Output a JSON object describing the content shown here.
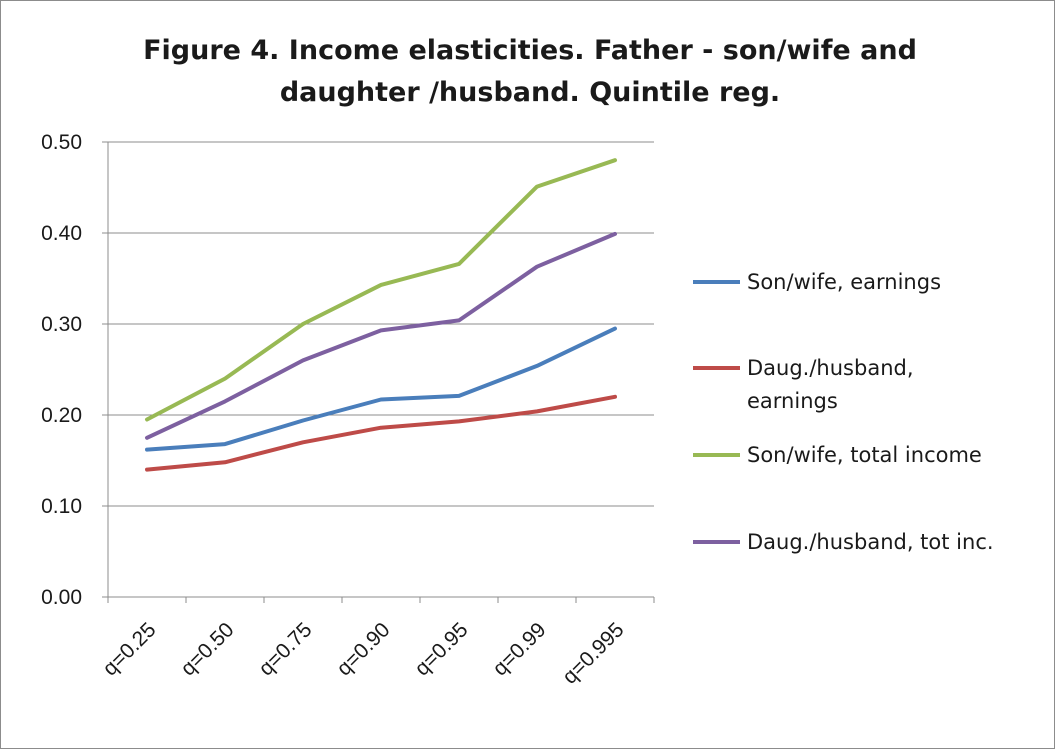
{
  "chart_data": {
    "type": "line",
    "title": "Figure 4. Income elasticities. Father - son/wife and daughter /husband. Quintile reg.",
    "categories": [
      "q=0.25",
      "q=0.50",
      "q=0.75",
      "q=0.90",
      "q=0.95",
      "q=0.99",
      "q=0.995"
    ],
    "ylim": [
      0,
      0.5
    ],
    "yticks": [
      "0.00",
      "0.10",
      "0.20",
      "0.30",
      "0.40",
      "0.50"
    ],
    "grid": true,
    "legend_position": "right",
    "series": [
      {
        "name": "Son/wife, earnings",
        "legend_lines": [
          "Son/wife, earnings"
        ],
        "color": "#4a7ebb",
        "values": [
          0.162,
          0.168,
          0.194,
          0.217,
          0.221,
          0.254,
          0.295
        ]
      },
      {
        "name": "Daug./husband, earnings",
        "legend_lines": [
          "Daug./husband,",
          "earnings"
        ],
        "color": "#be4b48",
        "values": [
          0.14,
          0.148,
          0.17,
          0.186,
          0.193,
          0.204,
          0.22
        ]
      },
      {
        "name": "Son/wife, total income",
        "legend_lines": [
          "Son/wife, total income"
        ],
        "color": "#98b954",
        "values": [
          0.195,
          0.24,
          0.3,
          0.343,
          0.366,
          0.451,
          0.48
        ]
      },
      {
        "name": "Daug./husband, tot inc.",
        "legend_lines": [
          "Daug./husband, tot inc."
        ],
        "color": "#7d60a0",
        "values": [
          0.175,
          0.215,
          0.26,
          0.293,
          0.304,
          0.363,
          0.399
        ]
      }
    ]
  }
}
